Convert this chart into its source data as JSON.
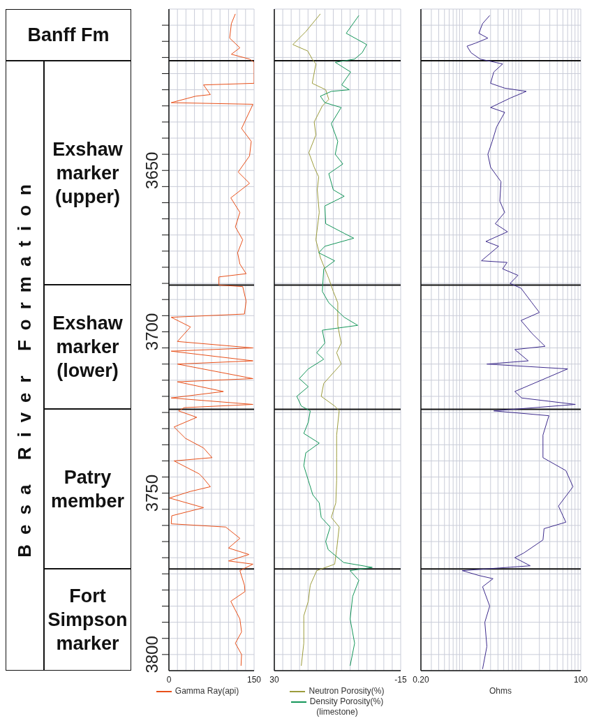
{
  "chart_data": [
    {
      "type": "line",
      "legend": "bottom",
      "grid": true,
      "series": [
        {
          "name": "Gamma Ray(api)",
          "color": "#e8501a",
          "x": [
            117,
            110,
            107,
            125,
            110,
            142,
            150,
            150,
            61,
            73,
            47,
            4,
            148,
            136,
            128,
            145,
            142,
            122,
            142,
            109,
            125,
            117,
            130,
            121,
            125,
            136,
            88,
            88,
            130,
            136,
            133,
            4,
            38,
            15,
            148,
            4,
            148,
            15,
            148,
            15,
            96,
            4,
            148,
            27,
            17,
            49,
            9,
            29,
            61,
            76,
            9,
            53,
            59,
            73,
            37,
            1,
            61,
            5,
            4,
            100,
            125,
            105,
            141,
            105,
            148,
            125,
            133,
            134,
            109,
            125,
            128,
            117,
            128,
            127
          ],
          "values": [
            3601.5,
            3604.5,
            3609,
            3612,
            3614,
            3615.5,
            3616.5,
            3623,
            3623.5,
            3626.5,
            3627,
            3629,
            3629.5,
            3634,
            3637,
            3641,
            3645.5,
            3650.5,
            3654,
            3658.5,
            3663,
            3667.5,
            3671.5,
            3675.5,
            3679,
            3682,
            3683,
            3685.5,
            3686,
            3690.5,
            3694.5,
            3695.5,
            3698.5,
            3703,
            3705,
            3706,
            3709,
            3710,
            3714.5,
            3715.5,
            3718.5,
            3720.5,
            3722.5,
            3723.5,
            3724.5,
            3726.5,
            3729.5,
            3733,
            3736,
            3739,
            3740,
            3744,
            3745,
            3748,
            3749.5,
            3751.5,
            3754.5,
            3757,
            3759.5,
            3760.5,
            3764,
            3767,
            3769,
            3771,
            3772,
            3774,
            3778.5,
            3780.5,
            3783.5,
            3789,
            3793,
            3796.5,
            3800,
            3803.5
          ]
        }
      ],
      "xlim": [
        0,
        150
      ],
      "xticks": [
        0,
        {
          "value": 15,
          "label": null
        },
        {
          "value": 30,
          "label": null
        },
        {
          "value": 45,
          "label": null
        },
        {
          "value": 60,
          "label": null
        },
        {
          "value": 75,
          "label": null
        },
        {
          "value": 90,
          "label": null
        },
        {
          "value": 105,
          "label": null
        },
        {
          "value": 120,
          "label": null
        },
        {
          "value": 135,
          "label": null
        },
        150
      ],
      "ylim": [
        3805,
        3600
      ],
      "yticks": [
        {
          "value": 3605,
          "label": null
        },
        {
          "value": 3610,
          "label": null
        },
        {
          "value": 3615,
          "label": null
        },
        {
          "value": 3620,
          "label": null
        },
        {
          "value": 3625,
          "label": null
        },
        {
          "value": 3630,
          "label": null
        },
        {
          "value": 3635,
          "label": null
        },
        {
          "value": 3640,
          "label": null
        },
        {
          "value": 3645,
          "label": null
        },
        3650,
        {
          "value": 3655,
          "label": null
        },
        {
          "value": 3660,
          "label": null
        },
        {
          "value": 3665,
          "label": null
        },
        {
          "value": 3670,
          "label": null
        },
        {
          "value": 3675,
          "label": null
        },
        {
          "value": 3680,
          "label": null
        },
        {
          "value": 3685,
          "label": null
        },
        {
          "value": 3690,
          "label": null
        },
        {
          "value": 3695,
          "label": null
        },
        3700,
        {
          "value": 3705,
          "label": null
        },
        {
          "value": 3710,
          "label": null
        },
        {
          "value": 3715,
          "label": null
        },
        {
          "value": 3720,
          "label": null
        },
        {
          "value": 3725,
          "label": null
        },
        {
          "value": 3730,
          "label": null
        },
        {
          "value": 3735,
          "label": null
        },
        {
          "value": 3740,
          "label": null
        },
        {
          "value": 3745,
          "label": null
        },
        3750,
        {
          "value": 3755,
          "label": null
        },
        {
          "value": 3760,
          "label": null
        },
        {
          "value": 3765,
          "label": null
        },
        {
          "value": 3770,
          "label": null
        },
        {
          "value": 3775,
          "label": null
        },
        {
          "value": 3780,
          "label": null
        },
        {
          "value": 3785,
          "label": null
        },
        {
          "value": 3790,
          "label": null
        },
        {
          "value": 3795,
          "label": null
        },
        3800
      ],
      "ref_lines": [
        {
          "axis": "y",
          "value": 3616
        },
        {
          "axis": "y",
          "value": 3685.5
        },
        {
          "axis": "y",
          "value": 3724
        },
        {
          "axis": "y",
          "value": 3773.5
        }
      ],
      "annotations": [
        "Banff Fm",
        "Besa River Formation",
        "Exshaw marker (upper)",
        "Exshaw marker (lower)",
        "Patry member",
        "Fort Simpson marker"
      ]
    },
    {
      "type": "line",
      "legend": "bottom",
      "grid": true,
      "tick_labels": "x",
      "series": [
        {
          "name": "Neutron Porosity(%)",
          "color": "#9c9c3c",
          "x": [
            13.6,
            18.8,
            23.4,
            18.1,
            16.5,
            15.2,
            16.5,
            11.7,
            10.6,
            12.9,
            15.8,
            15.2,
            17.7,
            15.8,
            14.2,
            14.7,
            14.0,
            15.2,
            13.6,
            10.6,
            9.0,
            7.4,
            7.4,
            6.2,
            7.8,
            6.2,
            12.4,
            13.3,
            8.5,
            6.9,
            7.8,
            7.8,
            7.8,
            8.1,
            9.7,
            6.9,
            7.8,
            8.5,
            14.9,
            17.2,
            17.9,
            19.5,
            19.5,
            20.4
          ],
          "values": [
            3601.5,
            3607,
            3611,
            3613,
            3615.5,
            3617,
            3623,
            3625,
            3628,
            3630,
            3635,
            3639,
            3644.5,
            3649,
            3652,
            3656,
            3663,
            3671.5,
            3677,
            3683.5,
            3687.5,
            3691,
            3698,
            3703.5,
            3706.5,
            3710,
            3716,
            3720,
            3723,
            3724.5,
            3732,
            3739,
            3746,
            3753,
            3757.5,
            3760.5,
            3767.5,
            3772,
            3774,
            3778.5,
            3783.5,
            3788,
            3796.5,
            3803.5
          ]
        },
        {
          "name": "Density Porosity(%)",
          "color": "#14965a",
          "x": [
            -0.1,
            4.4,
            -2.9,
            -1.3,
            1.4,
            8.3,
            2.8,
            6.0,
            3.3,
            9.7,
            13.6,
            12.0,
            6.2,
            9.7,
            7.4,
            8.3,
            5.6,
            10.6,
            9.0,
            5.1,
            12.0,
            11.7,
            5.1,
            1.7,
            12.0,
            14.2,
            8.5,
            12.4,
            12.9,
            10.6,
            5.1,
            0.3,
            12.9,
            12.0,
            14.9,
            12.4,
            17.9,
            21.1,
            17.9,
            22.0,
            20.4,
            17.2,
            17.9,
            19.5,
            14.0,
            18.8,
            19.5,
            17.9,
            16.3,
            14.0,
            13.3,
            10.1,
            11.7,
            10.8,
            5.3,
            -4.9,
            3.0,
            -0.1,
            2.1,
            3.0,
            1.4,
            3.0
          ],
          "values": [
            3602,
            3607.5,
            3611,
            3613.5,
            3615.5,
            3616.5,
            3619.5,
            3623.5,
            3625,
            3625.5,
            3627,
            3629,
            3630.5,
            3635.5,
            3641,
            3645,
            3648,
            3651,
            3656,
            3658,
            3661,
            3666.5,
            3669.5,
            3671,
            3673.5,
            3675.5,
            3678,
            3680.5,
            3687.5,
            3691,
            3695.5,
            3698,
            3699.5,
            3703.5,
            3706.5,
            3708.5,
            3711.5,
            3714.5,
            3717,
            3720,
            3723,
            3724.5,
            3728,
            3731.5,
            3734.5,
            3737.5,
            3741.5,
            3746,
            3750.5,
            3753,
            3757.5,
            3760.5,
            3765,
            3767.5,
            3771.5,
            3773,
            3774,
            3777,
            3782,
            3789,
            3796.5,
            3803.5
          ]
        }
      ],
      "xlim": [
        30,
        -15
      ],
      "xticks": [
        30,
        {
          "value": 27,
          "label": null
        },
        {
          "value": 24,
          "label": null
        },
        {
          "value": 21,
          "label": null
        },
        {
          "value": 18,
          "label": null
        },
        {
          "value": 15,
          "label": null
        },
        {
          "value": 12,
          "label": null
        },
        {
          "value": 9,
          "label": null
        },
        {
          "value": 6,
          "label": null
        },
        {
          "value": 3,
          "label": null
        },
        {
          "value": 0,
          "label": null
        },
        {
          "value": -3,
          "label": null
        },
        {
          "value": -6,
          "label": null
        },
        {
          "value": -9,
          "label": null
        },
        {
          "value": -12,
          "label": null
        },
        -15
      ],
      "ylim": [
        3805,
        3600
      ],
      "yticks": [
        3605,
        3610,
        3615,
        3620,
        3625,
        3630,
        3635,
        3640,
        3645,
        3650,
        3655,
        3660,
        3665,
        3670,
        3675,
        3680,
        3685,
        3690,
        3695,
        3700,
        3705,
        3710,
        3715,
        3720,
        3725,
        3730,
        3735,
        3740,
        3745,
        3750,
        3755,
        3760,
        3765,
        3770,
        3775,
        3780,
        3785,
        3790,
        3795,
        3800
      ],
      "ref_lines": [
        {
          "axis": "y",
          "value": 3616
        },
        {
          "axis": "y",
          "value": 3685.5
        },
        {
          "axis": "y",
          "value": 3724
        },
        {
          "axis": "y",
          "value": 3773.5
        }
      ],
      "annotations": [
        "(limestone)"
      ]
    },
    {
      "type": "line",
      "grid": true,
      "tick_labels": "x",
      "log": "x",
      "xlabel": "Ohms",
      "series": [
        {
          "color": "#3c2a8c",
          "x": [
            2.9,
            2.2,
            1.9,
            2.7,
            1.7,
            1.2,
            1.4,
            2.0,
            4.8,
            3.4,
            3.0,
            5.2,
            12,
            6.6,
            3.0,
            5.2,
            3.8,
            3.2,
            2.7,
            3.0,
            4.5,
            4.3,
            5.2,
            3.6,
            5.8,
            2.5,
            4.1,
            2.1,
            5.7,
            4.8,
            8.7,
            6.4,
            9.8,
            15,
            20,
            9.8,
            15,
            25,
            7.7,
            13,
            2.6,
            60,
            7.7,
            10,
            81,
            3.4,
            29,
            23,
            23,
            56,
            74,
            42,
            56,
            24,
            23,
            11,
            7.7,
            14,
            1.0,
            1.9,
            3.3,
            2.2,
            2.9,
            2.4,
            2.6,
            2.2
          ],
          "values": [
            3602,
            3604.5,
            3607.5,
            3609,
            3610.5,
            3611.5,
            3613.5,
            3615.5,
            3617,
            3619.5,
            3623,
            3624.5,
            3625.5,
            3627.5,
            3630.5,
            3632,
            3636.5,
            3641,
            3645,
            3649,
            3653.5,
            3659.5,
            3663,
            3666.5,
            3669,
            3672,
            3673.5,
            3678,
            3678.5,
            3680.5,
            3682.5,
            3685,
            3686.5,
            3691,
            3694,
            3696.5,
            3700.5,
            3704.5,
            3705.5,
            3709,
            3710,
            3711.5,
            3718.5,
            3720.5,
            3722.5,
            3724.5,
            3726,
            3732,
            3739,
            3743,
            3748,
            3754,
            3759,
            3761,
            3764.5,
            3768.5,
            3770,
            3772.5,
            3774,
            3775.5,
            3776.5,
            3779,
            3785,
            3790,
            3797.5,
            3804.5
          ]
        }
      ],
      "xlim": [
        0.2,
        100
      ],
      "xticks": [
        {
          "value": 0.2,
          "label": "0.20"
        },
        {
          "value": 0.3,
          "label": null
        },
        {
          "value": 0.4,
          "label": null
        },
        {
          "value": 0.5,
          "label": null
        },
        {
          "value": 0.6,
          "label": null
        },
        {
          "value": 0.7,
          "label": null
        },
        {
          "value": 0.8,
          "label": null
        },
        {
          "value": 0.9,
          "label": null
        },
        {
          "value": 1,
          "label": null
        },
        {
          "value": 2,
          "label": null
        },
        {
          "value": 3,
          "label": null
        },
        {
          "value": 4,
          "label": null
        },
        {
          "value": 5,
          "label": null
        },
        {
          "value": 6,
          "label": null
        },
        {
          "value": 7,
          "label": null
        },
        {
          "value": 8,
          "label": null
        },
        {
          "value": 9,
          "label": null
        },
        {
          "value": 10,
          "label": null
        },
        {
          "value": 20,
          "label": null
        },
        {
          "value": 30,
          "label": null
        },
        {
          "value": 40,
          "label": null
        },
        {
          "value": 50,
          "label": null
        },
        {
          "value": 60,
          "label": null
        },
        {
          "value": 70,
          "label": null
        },
        {
          "value": 80,
          "label": null
        },
        {
          "value": 90,
          "label": null
        },
        100
      ],
      "ylim": [
        3805,
        3600
      ],
      "yticks": [
        3605,
        3610,
        3615,
        3620,
        3625,
        3630,
        3635,
        3640,
        3645,
        3650,
        3655,
        3660,
        3665,
        3670,
        3675,
        3680,
        3685,
        3690,
        3695,
        3700,
        3705,
        3710,
        3715,
        3720,
        3725,
        3730,
        3735,
        3740,
        3745,
        3750,
        3755,
        3760,
        3765,
        3770,
        3775,
        3780,
        3785,
        3790,
        3795,
        3800
      ],
      "ref_lines": [
        {
          "axis": "y",
          "value": 3616
        },
        {
          "axis": "y",
          "value": 3685.5
        },
        {
          "axis": "y",
          "value": 3724
        },
        {
          "axis": "y",
          "value": 3773.5
        }
      ]
    }
  ]
}
